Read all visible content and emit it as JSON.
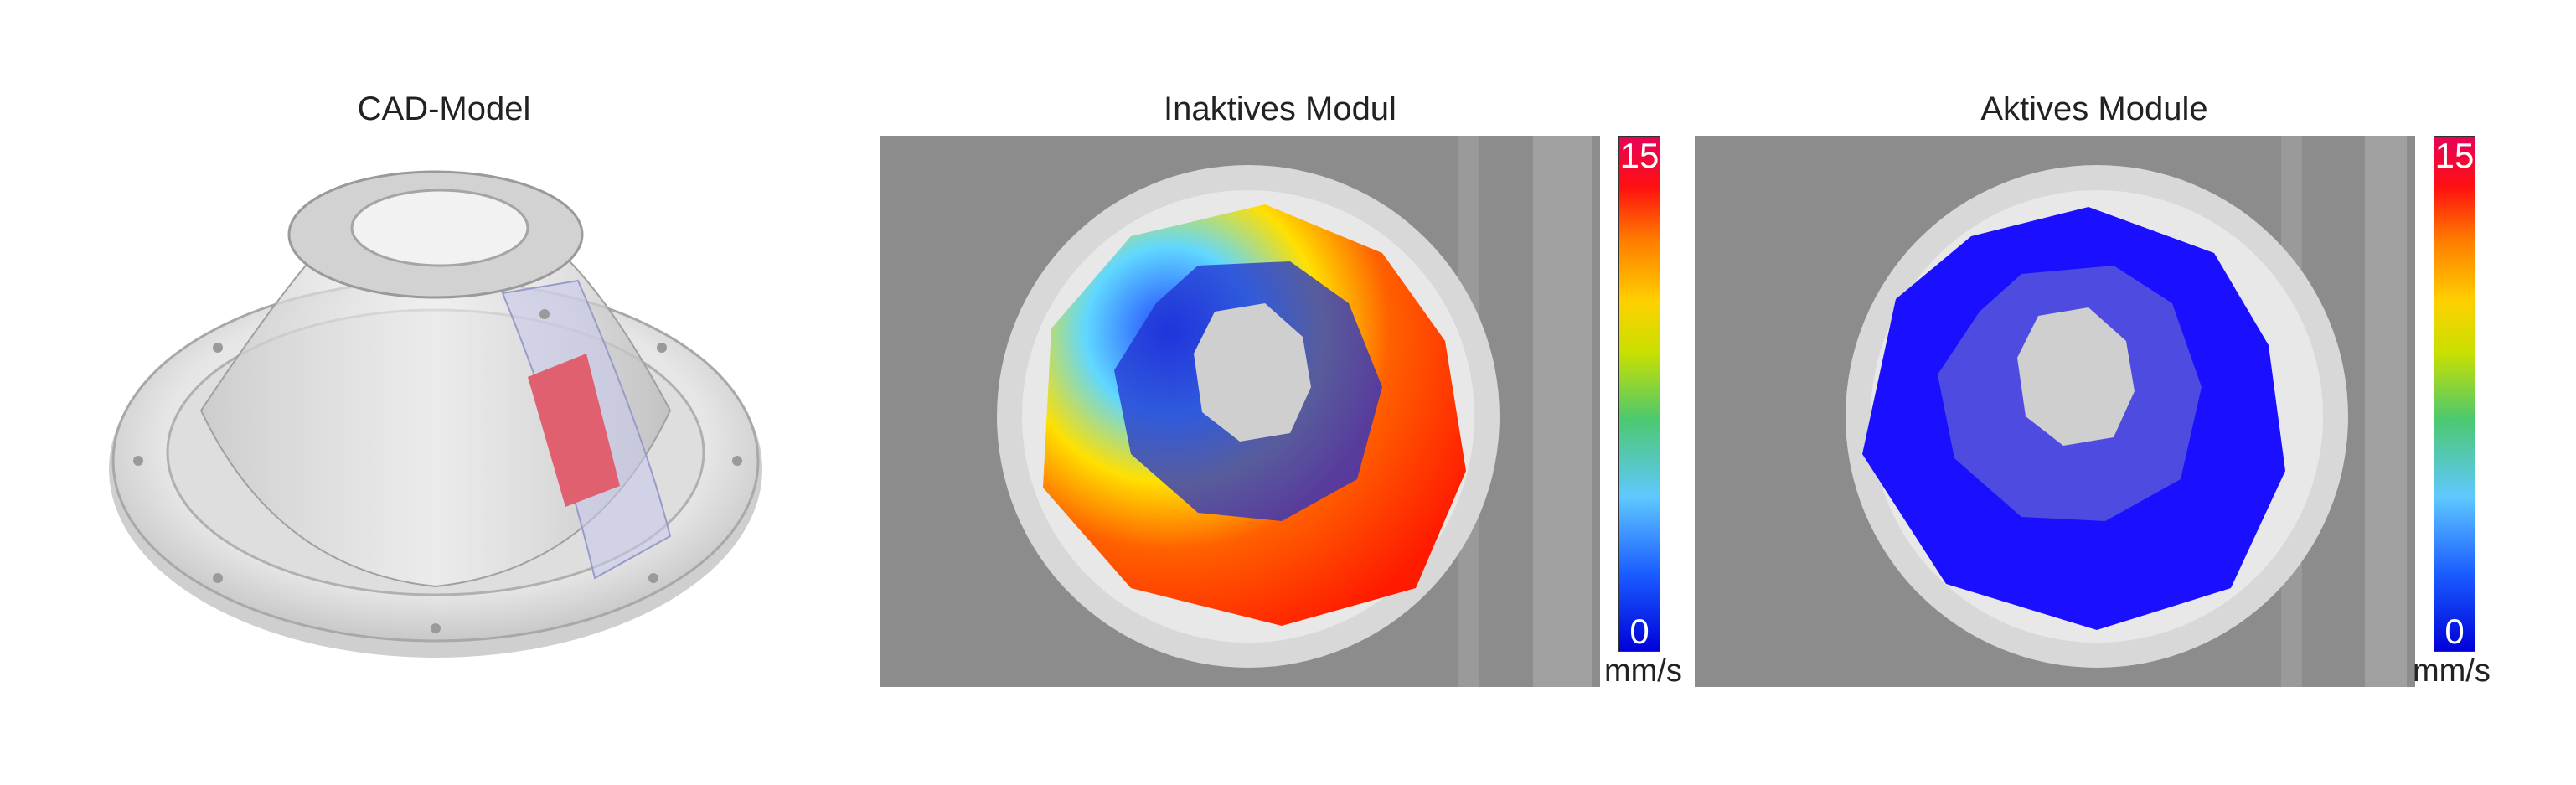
{
  "panels": [
    {
      "title": "CAD-Model"
    },
    {
      "title": "Inaktives Modul"
    },
    {
      "title": "Aktives Module"
    }
  ],
  "colorbar": {
    "min": "0",
    "max": "15",
    "unit": "mm/s",
    "colors": [
      "#0000d8",
      "#1a5cff",
      "#5fc8ff",
      "#4cc870",
      "#c8e000",
      "#ffd000",
      "#ff7a00",
      "#ff1010",
      "#e8005a"
    ]
  },
  "colors": {
    "inactive_hot": "#ff2000",
    "inactive_cold": "#2040ff",
    "active": "#1a10ff",
    "sensor": "#e06070"
  }
}
